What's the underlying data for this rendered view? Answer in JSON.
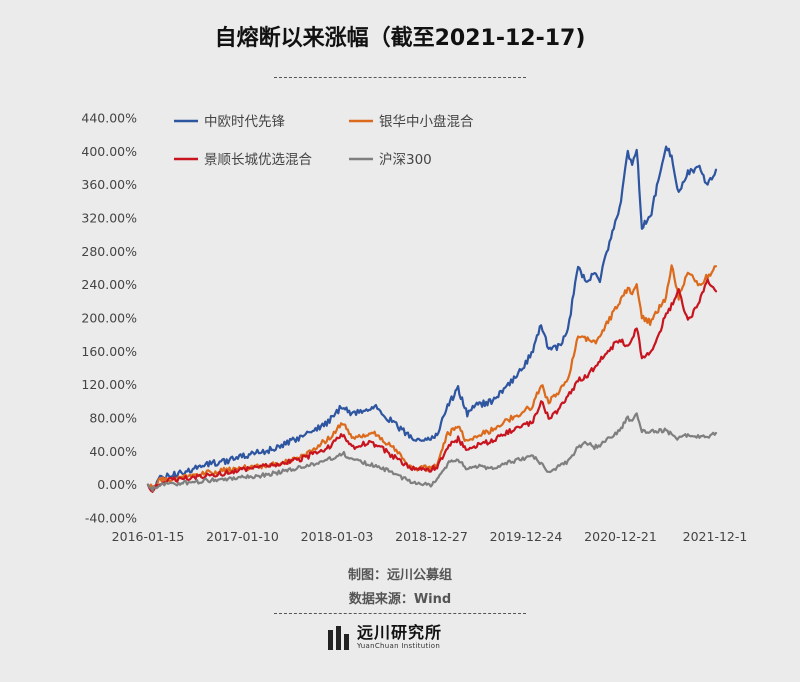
{
  "title": "自熔断以来涨幅（截至2021-12-17)",
  "credits": {
    "maker": "制图：远川公募组",
    "source": "数据来源：Wind"
  },
  "logo": {
    "name_cn": "远川研究所",
    "name_en": "YuanChuan Institution"
  },
  "colors": {
    "background": "#ebebeb",
    "series": [
      "#2e55a0",
      "#dc6a1c",
      "#c8141e",
      "#7f7f7f"
    ]
  },
  "chart_data": {
    "type": "line",
    "ylim": [
      -40,
      440
    ],
    "yticks": [
      -40,
      0,
      40,
      80,
      120,
      160,
      200,
      240,
      280,
      320,
      360,
      400,
      440
    ],
    "ytick_labels": [
      "-40.00%",
      "0.00%",
      "40.00%",
      "80.00%",
      "120.00%",
      "160.00%",
      "200.00%",
      "240.00%",
      "280.00%",
      "320.00%",
      "360.00%",
      "400.00%",
      "440.00%"
    ],
    "xtick_labels": [
      "2016-01-15",
      "2017-01-10",
      "2018-01-03",
      "2018-12-27",
      "2019-12-24",
      "2020-12-21",
      "2021-12-1"
    ],
    "x_range": [
      "2016-01-15",
      "2021-12-17"
    ],
    "grid": false,
    "legend_position": "top-left",
    "series": [
      {
        "name": "中欧时代先锋",
        "points": [
          [
            "2016-01-15",
            0
          ],
          [
            "2016-02-01",
            -6
          ],
          [
            "2016-03-01",
            8
          ],
          [
            "2016-06-01",
            15
          ],
          [
            "2016-09-01",
            25
          ],
          [
            "2016-12-01",
            30
          ],
          [
            "2017-03-01",
            38
          ],
          [
            "2017-06-01",
            45
          ],
          [
            "2017-09-01",
            60
          ],
          [
            "2017-12-01",
            75
          ],
          [
            "2018-01-25",
            95
          ],
          [
            "2018-03-01",
            85
          ],
          [
            "2018-05-01",
            90
          ],
          [
            "2018-06-01",
            95
          ],
          [
            "2018-08-01",
            75
          ],
          [
            "2018-10-01",
            60
          ],
          [
            "2018-11-01",
            55
          ],
          [
            "2018-12-27",
            55
          ],
          [
            "2019-01-20",
            60
          ],
          [
            "2019-03-01",
            95
          ],
          [
            "2019-04-10",
            115
          ],
          [
            "2019-05-15",
            85
          ],
          [
            "2019-06-20",
            95
          ],
          [
            "2019-08-15",
            100
          ],
          [
            "2019-10-01",
            115
          ],
          [
            "2019-12-01",
            135
          ],
          [
            "2020-01-20",
            160
          ],
          [
            "2020-02-20",
            195
          ],
          [
            "2020-03-20",
            160
          ],
          [
            "2020-04-25",
            165
          ],
          [
            "2020-06-01",
            185
          ],
          [
            "2020-07-10",
            265
          ],
          [
            "2020-08-10",
            240
          ],
          [
            "2020-09-10",
            255
          ],
          [
            "2020-10-01",
            245
          ],
          [
            "2020-11-01",
            285
          ],
          [
            "2020-12-15",
            330
          ],
          [
            "2021-01-15",
            400
          ],
          [
            "2021-02-01",
            380
          ],
          [
            "2021-02-18",
            405
          ],
          [
            "2021-03-10",
            310
          ],
          [
            "2021-04-10",
            320
          ],
          [
            "2021-05-01",
            350
          ],
          [
            "2021-06-10",
            405
          ],
          [
            "2021-07-01",
            395
          ],
          [
            "2021-07-28",
            350
          ],
          [
            "2021-09-01",
            375
          ],
          [
            "2021-10-15",
            380
          ],
          [
            "2021-11-15",
            360
          ],
          [
            "2021-12-17",
            378
          ]
        ]
      },
      {
        "name": "银华中小盘混合",
        "points": [
          [
            "2016-01-15",
            0
          ],
          [
            "2016-02-01",
            -5
          ],
          [
            "2016-03-01",
            5
          ],
          [
            "2016-06-01",
            10
          ],
          [
            "2016-09-01",
            15
          ],
          [
            "2016-12-01",
            18
          ],
          [
            "2017-03-01",
            22
          ],
          [
            "2017-06-01",
            25
          ],
          [
            "2017-09-01",
            35
          ],
          [
            "2017-12-01",
            55
          ],
          [
            "2018-01-25",
            75
          ],
          [
            "2018-03-01",
            55
          ],
          [
            "2018-05-01",
            60
          ],
          [
            "2018-06-01",
            62
          ],
          [
            "2018-08-01",
            45
          ],
          [
            "2018-10-01",
            25
          ],
          [
            "2018-11-01",
            20
          ],
          [
            "2018-12-27",
            20
          ],
          [
            "2019-01-20",
            25
          ],
          [
            "2019-03-01",
            60
          ],
          [
            "2019-04-10",
            70
          ],
          [
            "2019-05-15",
            50
          ],
          [
            "2019-06-20",
            60
          ],
          [
            "2019-08-15",
            65
          ],
          [
            "2019-10-01",
            75
          ],
          [
            "2019-12-01",
            85
          ],
          [
            "2020-01-20",
            95
          ],
          [
            "2020-02-20",
            120
          ],
          [
            "2020-03-20",
            100
          ],
          [
            "2020-04-25",
            110
          ],
          [
            "2020-06-01",
            125
          ],
          [
            "2020-07-10",
            180
          ],
          [
            "2020-08-10",
            175
          ],
          [
            "2020-09-10",
            170
          ],
          [
            "2020-10-01",
            180
          ],
          [
            "2020-11-01",
            195
          ],
          [
            "2020-12-15",
            220
          ],
          [
            "2021-01-15",
            235
          ],
          [
            "2021-02-01",
            230
          ],
          [
            "2021-02-18",
            240
          ],
          [
            "2021-03-10",
            200
          ],
          [
            "2021-04-10",
            195
          ],
          [
            "2021-05-01",
            205
          ],
          [
            "2021-06-10",
            225
          ],
          [
            "2021-07-01",
            265
          ],
          [
            "2021-07-28",
            225
          ],
          [
            "2021-09-01",
            255
          ],
          [
            "2021-10-15",
            240
          ],
          [
            "2021-11-15",
            250
          ],
          [
            "2021-12-17",
            262
          ]
        ]
      },
      {
        "name": "景顺长城优选混合",
        "points": [
          [
            "2016-01-15",
            0
          ],
          [
            "2016-02-01",
            -8
          ],
          [
            "2016-03-01",
            3
          ],
          [
            "2016-06-01",
            8
          ],
          [
            "2016-09-01",
            12
          ],
          [
            "2016-12-01",
            15
          ],
          [
            "2017-03-01",
            20
          ],
          [
            "2017-06-01",
            25
          ],
          [
            "2017-09-01",
            32
          ],
          [
            "2017-12-01",
            45
          ],
          [
            "2018-01-25",
            60
          ],
          [
            "2018-03-01",
            45
          ],
          [
            "2018-05-01",
            50
          ],
          [
            "2018-06-01",
            48
          ],
          [
            "2018-08-01",
            35
          ],
          [
            "2018-10-01",
            22
          ],
          [
            "2018-11-01",
            18
          ],
          [
            "2018-12-27",
            18
          ],
          [
            "2019-01-20",
            22
          ],
          [
            "2019-03-01",
            45
          ],
          [
            "2019-04-10",
            55
          ],
          [
            "2019-05-15",
            40
          ],
          [
            "2019-06-20",
            48
          ],
          [
            "2019-08-15",
            52
          ],
          [
            "2019-10-01",
            60
          ],
          [
            "2019-12-01",
            70
          ],
          [
            "2020-01-20",
            75
          ],
          [
            "2020-02-20",
            100
          ],
          [
            "2020-03-20",
            80
          ],
          [
            "2020-04-25",
            90
          ],
          [
            "2020-06-01",
            105
          ],
          [
            "2020-07-10",
            125
          ],
          [
            "2020-08-10",
            130
          ],
          [
            "2020-09-10",
            140
          ],
          [
            "2020-10-01",
            150
          ],
          [
            "2020-11-01",
            160
          ],
          [
            "2020-12-15",
            175
          ],
          [
            "2021-01-15",
            165
          ],
          [
            "2021-02-01",
            175
          ],
          [
            "2021-02-18",
            190
          ],
          [
            "2021-03-10",
            150
          ],
          [
            "2021-04-10",
            160
          ],
          [
            "2021-05-01",
            170
          ],
          [
            "2021-06-10",
            205
          ],
          [
            "2021-07-01",
            215
          ],
          [
            "2021-07-28",
            235
          ],
          [
            "2021-09-01",
            195
          ],
          [
            "2021-10-15",
            220
          ],
          [
            "2021-11-15",
            245
          ],
          [
            "2021-12-17",
            232
          ]
        ]
      },
      {
        "name": "沪深300",
        "points": [
          [
            "2016-01-15",
            0
          ],
          [
            "2016-02-01",
            -5
          ],
          [
            "2016-03-01",
            0
          ],
          [
            "2016-06-01",
            2
          ],
          [
            "2016-09-01",
            5
          ],
          [
            "2016-12-01",
            8
          ],
          [
            "2017-03-01",
            10
          ],
          [
            "2017-06-01",
            15
          ],
          [
            "2017-09-01",
            22
          ],
          [
            "2017-12-01",
            30
          ],
          [
            "2018-01-25",
            38
          ],
          [
            "2018-03-01",
            30
          ],
          [
            "2018-05-01",
            25
          ],
          [
            "2018-06-01",
            22
          ],
          [
            "2018-08-01",
            15
          ],
          [
            "2018-10-01",
            5
          ],
          [
            "2018-11-01",
            3
          ],
          [
            "2018-12-27",
            0
          ],
          [
            "2019-01-20",
            5
          ],
          [
            "2019-03-01",
            25
          ],
          [
            "2019-04-10",
            30
          ],
          [
            "2019-05-15",
            18
          ],
          [
            "2019-06-20",
            22
          ],
          [
            "2019-08-15",
            20
          ],
          [
            "2019-10-01",
            25
          ],
          [
            "2019-12-01",
            30
          ],
          [
            "2020-01-20",
            35
          ],
          [
            "2020-02-20",
            25
          ],
          [
            "2020-03-20",
            15
          ],
          [
            "2020-04-25",
            22
          ],
          [
            "2020-06-01",
            28
          ],
          [
            "2020-07-10",
            45
          ],
          [
            "2020-08-10",
            50
          ],
          [
            "2020-09-10",
            45
          ],
          [
            "2020-10-01",
            48
          ],
          [
            "2020-11-01",
            55
          ],
          [
            "2020-12-15",
            65
          ],
          [
            "2021-01-15",
            80
          ],
          [
            "2021-02-01",
            75
          ],
          [
            "2021-02-18",
            85
          ],
          [
            "2021-03-10",
            65
          ],
          [
            "2021-04-10",
            63
          ],
          [
            "2021-05-01",
            65
          ],
          [
            "2021-06-10",
            65
          ],
          [
            "2021-07-01",
            60
          ],
          [
            "2021-07-28",
            55
          ],
          [
            "2021-09-01",
            60
          ],
          [
            "2021-10-15",
            58
          ],
          [
            "2021-11-15",
            58
          ],
          [
            "2021-12-17",
            62
          ]
        ]
      }
    ]
  }
}
